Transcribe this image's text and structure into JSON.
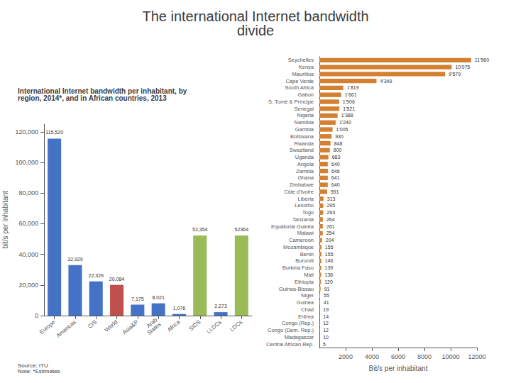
{
  "chart_data": [
    {
      "type": "bar",
      "title": "The international Internet bandwidth\ndivide",
      "subtitle": "International Internet bandwidth per inhabitant, by\nregion, 2014*, and in African countries, 2013",
      "annotations": [
        "Source: ITU\nNote: *Estimates"
      ],
      "categories": [
        "Europe",
        "Americas",
        "CIS",
        "World",
        "Asia&P",
        "Arab\nStates",
        "Africa",
        "SIDS",
        "LLDCs",
        "LDCs"
      ],
      "values": [
        115520,
        32929,
        22329,
        20084,
        7175,
        8021,
        1076,
        52354,
        2273,
        52364
      ],
      "colors": [
        "#4472c4",
        "#4472c4",
        "#4472c4",
        "#c0504d",
        "#4472c4",
        "#4472c4",
        "#4472c4",
        "#9bbb59",
        "#4472c4",
        "#9bbb59"
      ],
      "value_labels": [
        "115,520",
        "32,929",
        "22,329",
        "20,084",
        "7,175",
        "8,021",
        "1,076",
        "52,354",
        "2,273",
        "52364"
      ],
      "data_labels": true,
      "ylabel": "bit/s per inhabitant",
      "ylim": [
        0,
        125000
      ],
      "yticks": [
        0,
        {
          "value": 20000,
          "label": "20,000"
        },
        {
          "value": 40000,
          "label": "40,000"
        },
        {
          "value": 60000,
          "label": "60,000"
        },
        {
          "value": 80000,
          "label": "80,000"
        },
        {
          "value": 100000,
          "label": "100,000"
        },
        {
          "value": 120000,
          "label": "120,000"
        }
      ],
      "grid": false
    },
    {
      "type": "bar",
      "orientation": "horizontal",
      "categories": [
        "Seychelles",
        "Kenya",
        "Mauritius",
        "Cape Verde",
        "South Africa",
        "Gabon",
        "S. Tomé & Príncipe",
        "Senegal",
        "Nigeria",
        "Namibia",
        "Gambia",
        "Botswana",
        "Rwanda",
        "Swaziland",
        "Uganda",
        "Angola",
        "Zambia",
        "Ghana",
        "Zimbabwe",
        "Côte d'Ivoire",
        "Liberia",
        "Lesotho",
        "Togo",
        "Tanzania",
        "Equatorial Guinea",
        "Malawi",
        "Cameroon",
        "Mozambique",
        "Benin",
        "Burundi",
        "Burkina Faso",
        "Mali",
        "Ethiopia",
        "Guinea-Bissau",
        "Niger",
        "Guinea",
        "Chad",
        "Eritrea",
        "Congo (Rep.)",
        "Congo (Dem. Rep.)",
        "Madagascar",
        "Central African Rep."
      ],
      "values": [
        11560,
        10075,
        9579,
        4349,
        1819,
        1661,
        1506,
        1521,
        1388,
        1240,
        1005,
        930,
        848,
        800,
        683,
        640,
        646,
        641,
        640,
        591,
        313,
        295,
        293,
        264,
        261,
        254,
        204,
        155,
        155,
        146,
        139,
        136,
        120,
        91,
        55,
        41,
        19,
        14,
        12,
        12,
        10,
        5
      ],
      "value_labels": [
        "11'560",
        "10'075",
        "9'579",
        "4'349",
        "1'819",
        "1'661",
        "1'506",
        "1'521",
        "1'388",
        "1'240",
        "1'005",
        "930",
        "848",
        "800",
        "683",
        "640",
        "646",
        "641",
        "640",
        "591",
        "313",
        "295",
        "293",
        "264",
        "261",
        "254",
        "204",
        "155",
        "155",
        "146",
        "139",
        "136",
        "120",
        "91",
        "55",
        "41",
        "19",
        "14",
        "12",
        "12",
        "10",
        "5"
      ],
      "data_labels": true,
      "color": "#d48030",
      "xlabel": "Bit/s per inhabitant",
      "xlim": [
        0,
        12000
      ],
      "xticks": [
        2000,
        4000,
        6000,
        8000,
        10000,
        12000
      ],
      "grid": false
    }
  ]
}
